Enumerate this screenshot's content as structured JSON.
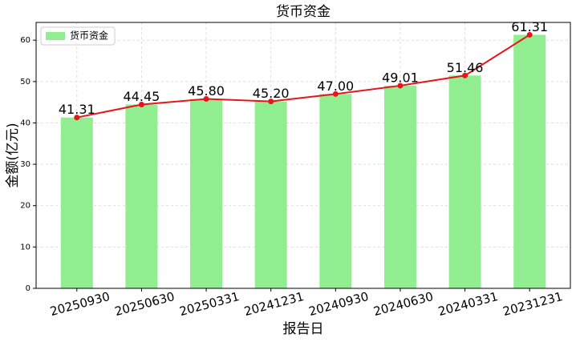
{
  "chart_data": {
    "type": "bar",
    "title": "货币资金",
    "xlabel": "报告日",
    "ylabel": "金额(亿元)",
    "categories": [
      "20250930",
      "20250630",
      "20250331",
      "20241231",
      "20240930",
      "20240630",
      "20240331",
      "20231231"
    ],
    "series": [
      {
        "name": "货币资金",
        "color": "#90ee90",
        "values": [
          41.31,
          44.45,
          45.8,
          45.2,
          47.0,
          49.01,
          51.46,
          61.31
        ],
        "value_labels": [
          "41.31",
          "44.45",
          "45.80",
          "45.20",
          "47.00",
          "49.01",
          "51.46",
          "61.31"
        ]
      }
    ],
    "line_overlay": true,
    "line_color": "#e8141a",
    "ylim": [
      0,
      64.3
    ],
    "yticks": [
      0,
      10,
      20,
      30,
      40,
      50,
      60
    ],
    "grid": true,
    "legend": "upper left"
  }
}
